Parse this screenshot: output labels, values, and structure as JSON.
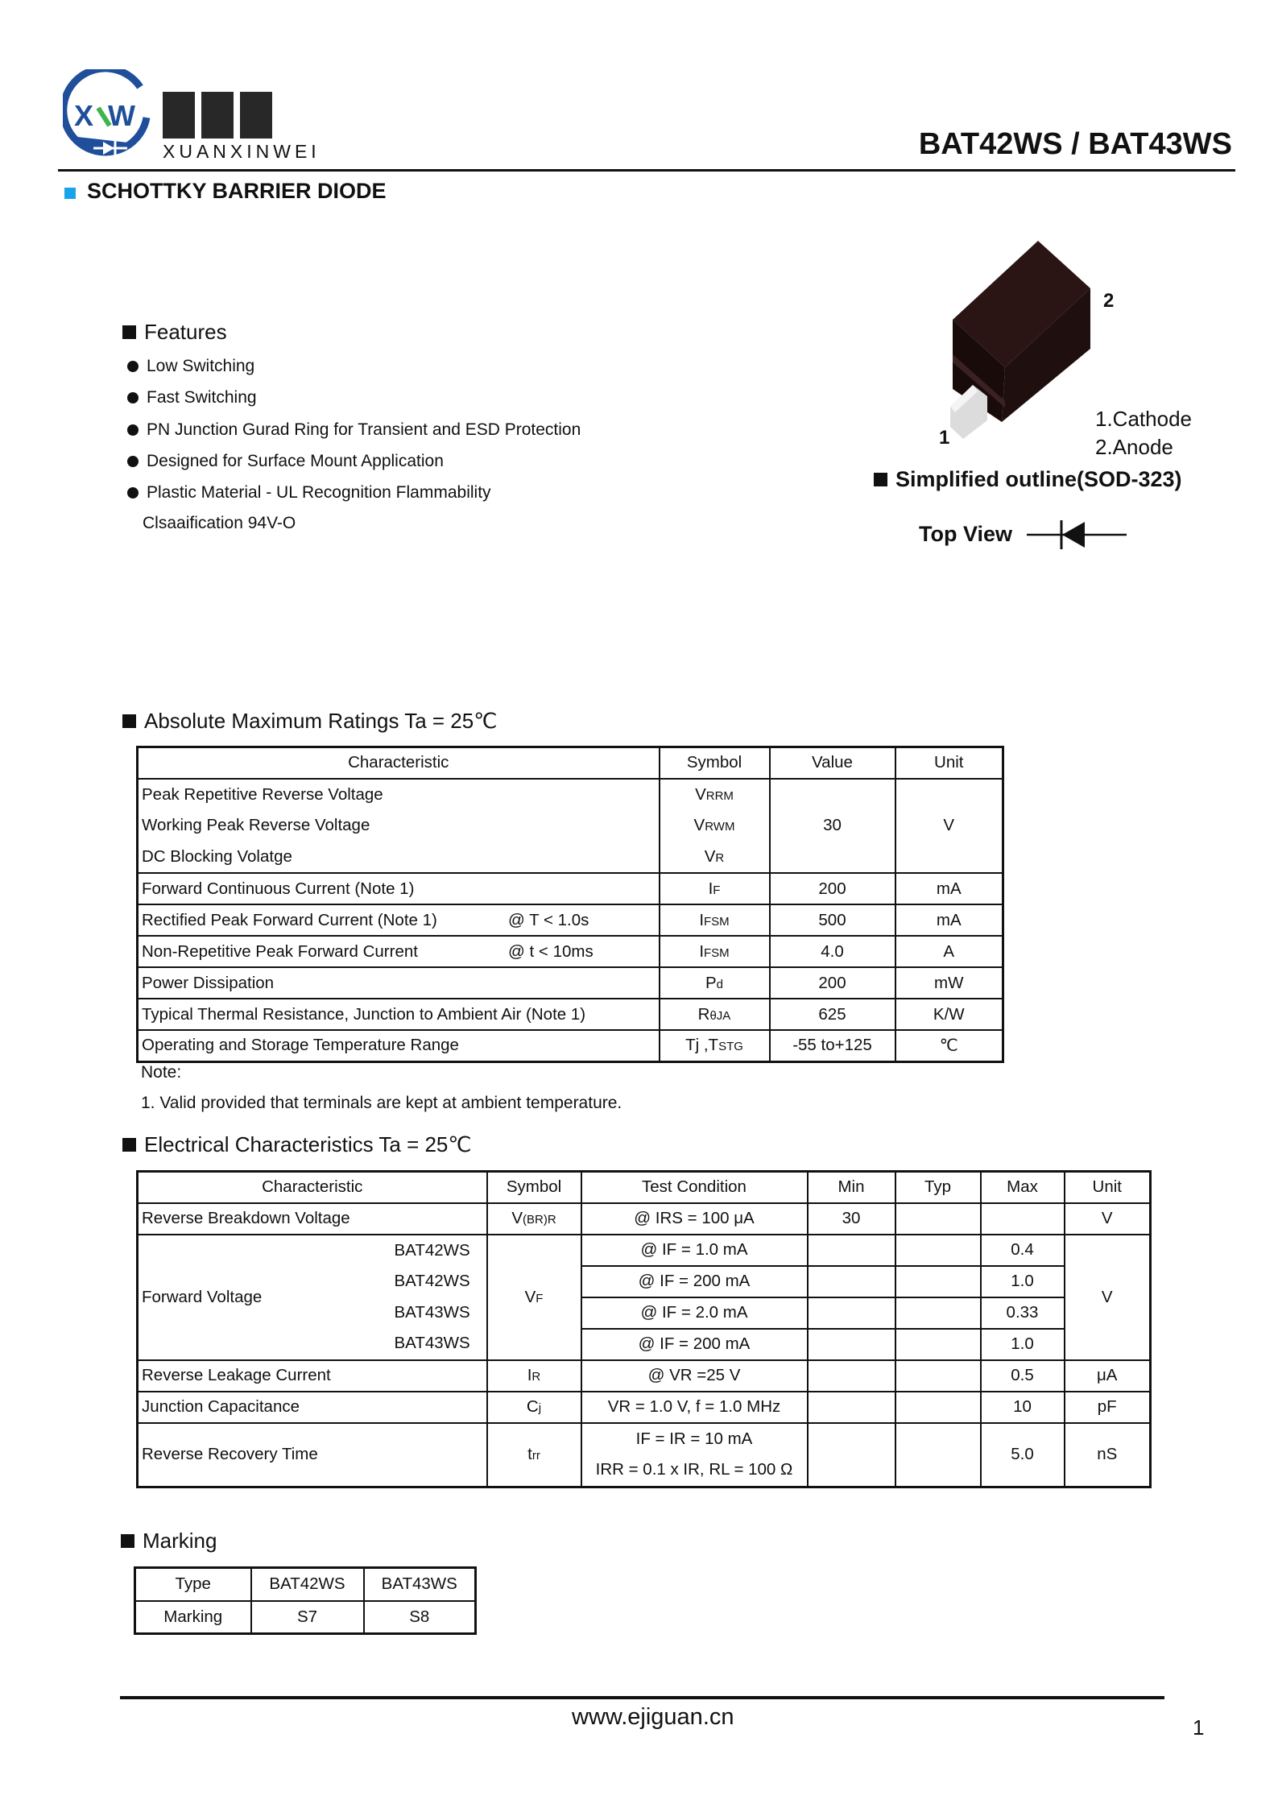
{
  "header": {
    "logo_cn": "恒芯微",
    "logo_en": "XUANXINWEI",
    "logo_mark": "XW",
    "part_title": "BAT42WS / BAT43WS",
    "subtitle": "SCHOTTKY BARRIER DIODE",
    "accent_color": "#1aa3e8",
    "logo_blue": "#1f4e9a",
    "logo_green": "#3db54a"
  },
  "features": {
    "title": "Features",
    "items": [
      "Low Switching",
      "Fast Switching",
      "PN Junction Gurad Ring for Transient and ESD Protection",
      "Designed for Surface Mount Application",
      "Plastic Material - UL Recognition Flammability"
    ],
    "continuation": "Clsaaification 94V-O"
  },
  "package": {
    "pin1_label": "1",
    "pin2_label": "2",
    "pin1_name": "1.Cathode",
    "pin2_name": "2.Anode",
    "outline_title": "Simplified outline(SOD-323)",
    "top_view": "Top View"
  },
  "abs_max": {
    "title": "Absolute Maximum Ratings Ta = 25℃",
    "headers": [
      "Characteristic",
      "Symbol",
      "Value",
      "Unit"
    ],
    "group": {
      "characteristics": [
        "Peak Repetitive  Reverse Voltage",
        "Working Peak Reverse Voltage",
        "DC Blocking Volatge"
      ],
      "symbols": [
        {
          "base": "V",
          "sub": "RRM"
        },
        {
          "base": "V",
          "sub": "RWM"
        },
        {
          "base": "V",
          "sub": "R"
        }
      ],
      "value": "30",
      "unit": "V"
    },
    "rows": [
      {
        "characteristic": "Forward Continuous Current (Note 1)",
        "condition": "",
        "symbol": {
          "base": "I",
          "sub": "F"
        },
        "value": "200",
        "unit": "mA"
      },
      {
        "characteristic": "Rectified Peak Forward Current (Note 1)",
        "condition": "@  T < 1.0s",
        "symbol": {
          "base": "I",
          "sub": "FSM"
        },
        "value": "500",
        "unit": "mA"
      },
      {
        "characteristic": "Non-Repetitive Peak Forward Current",
        "condition": "@  t < 10ms",
        "symbol": {
          "base": "I",
          "sub": "FSM"
        },
        "value": "4.0",
        "unit": "A"
      },
      {
        "characteristic": "Power Dissipation",
        "condition": "",
        "symbol": {
          "base": "P",
          "sub": "d"
        },
        "value": "200",
        "unit": "mW"
      },
      {
        "characteristic": "Typical Thermal Resistance, Junction to Ambient Air (Note 1)",
        "condition": "",
        "symbol": {
          "base": "R",
          "sub": "θJA"
        },
        "value": "625",
        "unit": "K/W"
      },
      {
        "characteristic": "Operating and Storage Temperature Range",
        "condition": "",
        "symbol": {
          "base": "Tj ,T",
          "sub": "STG"
        },
        "value": "-55 to+125",
        "unit": "℃"
      }
    ],
    "note_title": "Note:",
    "note_1": "1. Valid provided that terminals are kept at ambient temperature."
  },
  "electrical": {
    "title": "Electrical Characteristics Ta = 25℃",
    "headers": [
      "Characteristic",
      "Symbol",
      "Test Condition",
      "Min",
      "Typ",
      "Max",
      "Unit"
    ],
    "breakdown": {
      "characteristic": "Reverse Breakdown Voltage",
      "symbol": {
        "base": "V",
        "sub": "(BR)R"
      },
      "condition": "@ IRS = 100 μA",
      "min": "30",
      "typ": "",
      "max": "",
      "unit": "V"
    },
    "forward": {
      "characteristic": "Forward Voltage",
      "symbol": {
        "base": "V",
        "sub": "F"
      },
      "unit": "V",
      "sub_rows": [
        {
          "part": "BAT42WS",
          "condition": "@ IF = 1.0 mA",
          "min": "",
          "typ": "",
          "max": "0.4"
        },
        {
          "part": "BAT42WS",
          "condition": "@ IF = 200 mA",
          "min": "",
          "typ": "",
          "max": "1.0"
        },
        {
          "part": "BAT43WS",
          "condition": "@ IF = 2.0 mA",
          "min": "",
          "typ": "",
          "max": "0.33"
        },
        {
          "part": "BAT43WS",
          "condition": "@ IF = 200 mA",
          "min": "",
          "typ": "",
          "max": "1.0"
        }
      ]
    },
    "rows": [
      {
        "characteristic": "Reverse Leakage Current",
        "symbol": {
          "base": "I",
          "sub": "R"
        },
        "condition": "@ VR =25 V",
        "min": "",
        "typ": "",
        "max": "0.5",
        "unit": "μA"
      },
      {
        "characteristic": "Junction Capacitance",
        "symbol": {
          "base": "C",
          "sub": "j"
        },
        "condition": "VR = 1.0 V, f = 1.0 MHz",
        "min": "",
        "typ": "",
        "max": "10",
        "unit": "pF"
      }
    ],
    "recovery": {
      "characteristic": "Reverse Recovery Time",
      "symbol": {
        "base": "t",
        "sub": "rr"
      },
      "conditions": [
        "IF = IR = 10 mA",
        "IRR = 0.1 x IR,  RL = 100  Ω"
      ],
      "min": "",
      "typ": "",
      "max": "5.0",
      "unit": "nS"
    }
  },
  "marking": {
    "title": "Marking",
    "rows": [
      [
        "Type",
        "BAT42WS",
        "BAT43WS"
      ],
      [
        "Marking",
        "S7",
        "S8"
      ]
    ]
  },
  "footer": {
    "website": "www.ejiguan.cn",
    "page_number": "1"
  }
}
